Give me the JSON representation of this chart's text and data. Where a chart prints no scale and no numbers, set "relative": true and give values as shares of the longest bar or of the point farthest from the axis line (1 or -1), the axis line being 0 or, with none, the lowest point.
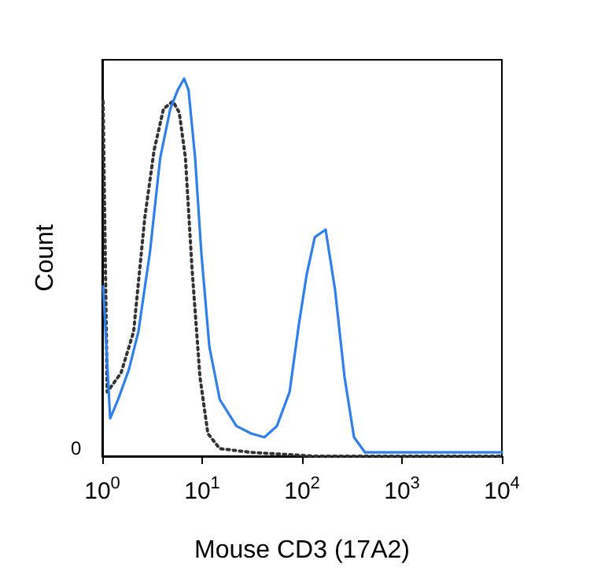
{
  "chart_data": {
    "type": "line",
    "xlabel": "Mouse CD3 (17A2)",
    "ylabel": "Count",
    "relative": true,
    "log": "x",
    "xlim": [
      1,
      10000
    ],
    "xticks": [
      {
        "value": 1,
        "label": "10$^{0}$"
      },
      {
        "value": 10,
        "label": "10$^{1}$"
      },
      {
        "value": 100,
        "label": "10$^{2}$"
      },
      {
        "value": 1000,
        "label": "10$^{3}$"
      },
      {
        "value": 10000,
        "label": "10$^{4}$"
      }
    ],
    "annotations": [
      "0"
    ],
    "grid": false,
    "marker": "none",
    "series": [
      {
        "color": "#333333",
        "line_style": "dotted",
        "x": [
          1.02,
          1.12,
          1.54,
          2.06,
          2.66,
          3.3,
          4.1,
          5.1,
          5.9,
          6.8,
          7.9,
          9.5,
          11.4,
          15,
          31,
          134,
          10000
        ],
        "values": [
          0.94,
          0.17,
          0.22,
          0.33,
          0.63,
          0.81,
          0.92,
          0.94,
          0.91,
          0.79,
          0.5,
          0.21,
          0.06,
          0.02,
          0.01,
          0,
          0
        ]
      },
      {
        "color": "#2f7fe8",
        "line_style": "solid",
        "x": [
          1.02,
          1.2,
          1.44,
          1.85,
          2.3,
          3.0,
          3.8,
          4.8,
          5.7,
          6.6,
          7.3,
          8.5,
          9.8,
          11.8,
          15,
          22,
          31,
          42,
          56,
          75,
          93,
          111,
          134,
          172,
          214,
          266,
          331,
          427,
          1175,
          10000
        ],
        "values": [
          0.45,
          0.1,
          0.15,
          0.23,
          0.33,
          0.54,
          0.79,
          0.92,
          0.97,
          1,
          0.97,
          0.79,
          0.54,
          0.29,
          0.15,
          0.08,
          0.06,
          0.05,
          0.08,
          0.17,
          0.35,
          0.48,
          0.58,
          0.6,
          0.44,
          0.21,
          0.05,
          0.01,
          0.01,
          0.01
        ]
      }
    ]
  }
}
